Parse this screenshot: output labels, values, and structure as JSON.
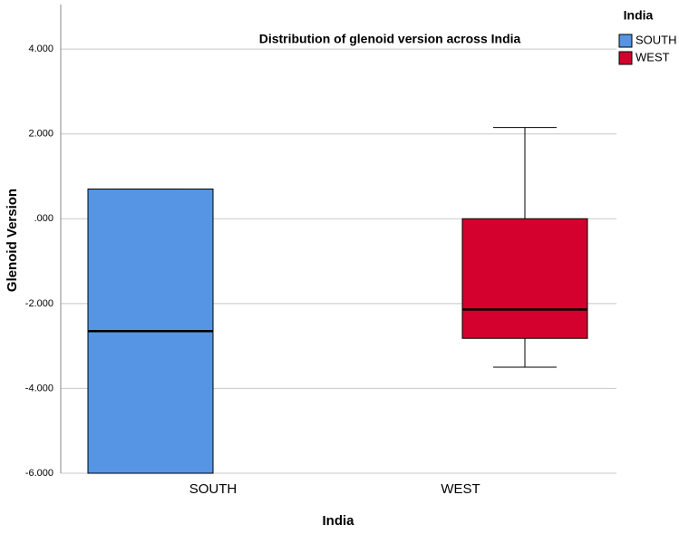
{
  "chart_data": {
    "type": "box",
    "title": "Distribution of glenoid version across India",
    "x_label": "India",
    "y_label": "Glenoid Version",
    "legend_title": "India",
    "categories": [
      "SOUTH",
      "WEST"
    ],
    "series": [
      {
        "name": "SOUTH",
        "color": "#5595e4",
        "min": -6,
        "q1": -6,
        "median": -2.65,
        "q3": 0.7,
        "max": 0.7
      },
      {
        "name": "WEST",
        "color": "#d4002d",
        "min": -3.5,
        "q1": -2.82,
        "median": -2.14,
        "q3": 0,
        "max": 2.15
      }
    ],
    "ylim": [
      -6,
      5.05
    ],
    "yticks": [
      {
        "value": -6,
        "label": "-6.000"
      },
      {
        "value": -4,
        "label": "-4.000"
      },
      {
        "value": -2,
        "label": "-2.000"
      },
      {
        "value": 0,
        "label": ".000"
      },
      {
        "value": 2,
        "label": "2.000"
      },
      {
        "value": 4,
        "label": "4.000"
      }
    ],
    "grid": true,
    "legend_position": "top-right"
  }
}
